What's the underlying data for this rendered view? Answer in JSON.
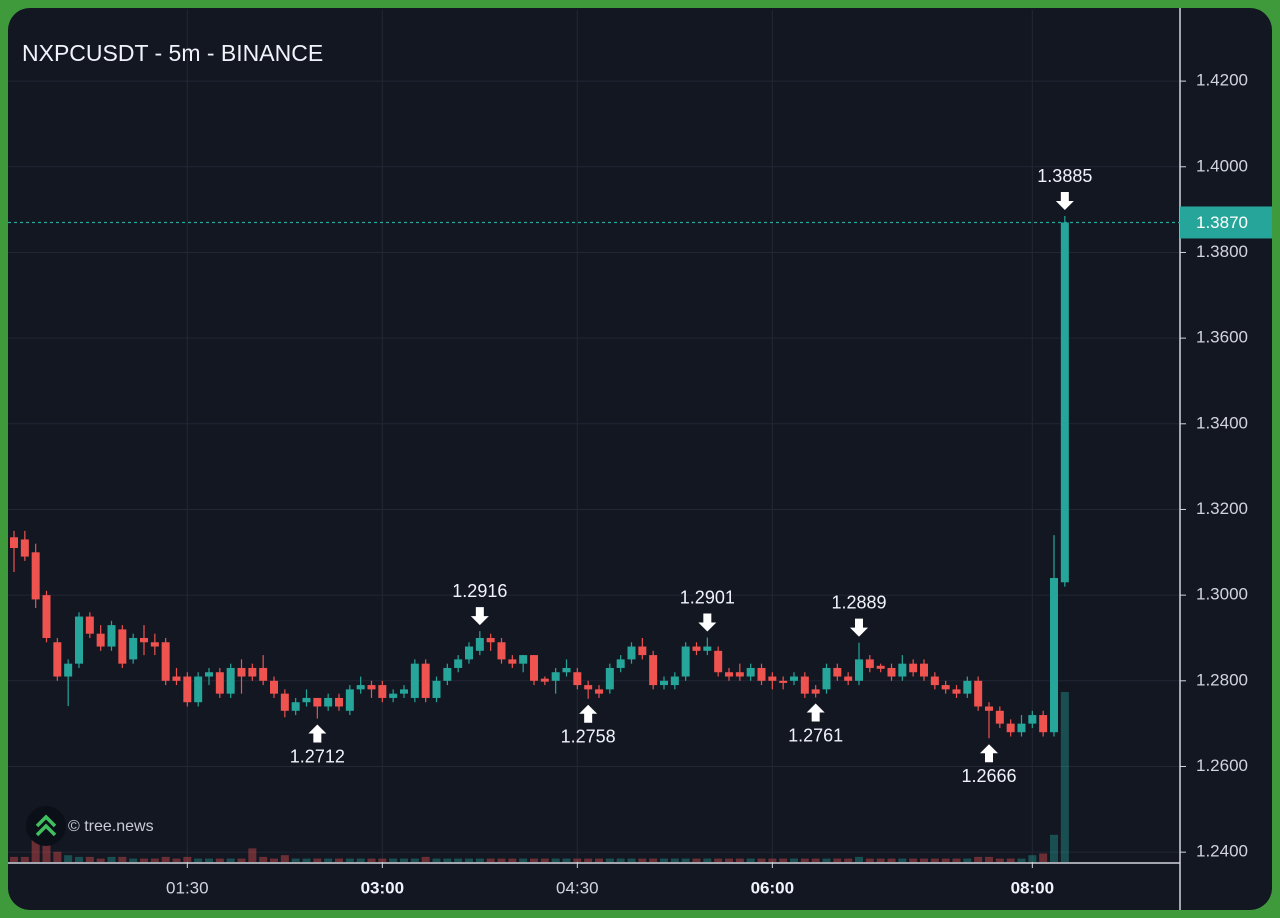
{
  "chart_data": {
    "type": "candlestick",
    "title": "NXPCUSDT - 5m - BINANCE",
    "watermark": "© tree.news",
    "x": [
      "00:10",
      "00:15",
      "00:20",
      "00:25",
      "00:30",
      "00:35",
      "00:40",
      "00:45",
      "00:50",
      "00:55",
      "01:00",
      "01:05",
      "01:10",
      "01:15",
      "01:20",
      "01:25",
      "01:30",
      "01:35",
      "01:40",
      "01:45",
      "01:50",
      "01:55",
      "02:00",
      "02:05",
      "02:10",
      "02:15",
      "02:20",
      "02:25",
      "02:30",
      "02:35",
      "02:40",
      "02:45",
      "02:50",
      "02:55",
      "03:00",
      "03:05",
      "03:10",
      "03:15",
      "03:20",
      "03:25",
      "03:30",
      "03:35",
      "03:40",
      "03:45",
      "03:50",
      "03:55",
      "04:00",
      "04:05",
      "04:10",
      "04:15",
      "04:20",
      "04:25",
      "04:30",
      "04:35",
      "04:40",
      "04:45",
      "04:50",
      "04:55",
      "05:00",
      "05:05",
      "05:10",
      "05:15",
      "05:20",
      "05:25",
      "05:30",
      "05:35",
      "05:40",
      "05:45",
      "05:50",
      "05:55",
      "06:00",
      "06:05",
      "06:10",
      "06:15",
      "06:20",
      "06:25",
      "06:30",
      "06:35",
      "06:40",
      "06:45",
      "06:50",
      "06:55",
      "07:00",
      "07:05",
      "07:10",
      "07:15",
      "07:20",
      "07:25",
      "07:30",
      "07:35",
      "07:40",
      "07:45",
      "07:50",
      "07:55",
      "08:00",
      "08:05",
      "08:10",
      "08:15"
    ],
    "open": [
      1.3135,
      1.313,
      1.31,
      1.3,
      1.289,
      1.281,
      1.284,
      1.295,
      1.291,
      1.288,
      1.292,
      1.285,
      1.29,
      1.289,
      1.289,
      1.281,
      1.281,
      1.275,
      1.281,
      1.282,
      1.277,
      1.283,
      1.283,
      1.283,
      1.28,
      1.277,
      1.273,
      1.275,
      1.276,
      1.274,
      1.276,
      1.273,
      1.278,
      1.279,
      1.279,
      1.276,
      1.277,
      1.276,
      1.284,
      1.276,
      1.28,
      1.283,
      1.285,
      1.287,
      1.29,
      1.289,
      1.285,
      1.284,
      1.286,
      1.2805,
      1.28,
      1.282,
      1.282,
      1.279,
      1.278,
      1.278,
      1.283,
      1.285,
      1.288,
      1.286,
      1.279,
      1.279,
      1.281,
      1.288,
      1.287,
      1.287,
      1.282,
      1.282,
      1.281,
      1.283,
      1.281,
      1.28,
      1.28,
      1.281,
      1.278,
      1.278,
      1.283,
      1.281,
      1.28,
      1.285,
      1.2835,
      1.283,
      1.281,
      1.284,
      1.284,
      1.281,
      1.279,
      1.278,
      1.277,
      1.28,
      1.274,
      1.273,
      1.27,
      1.268,
      1.27,
      1.272,
      1.268,
      1.303
    ],
    "high": [
      1.315,
      1.315,
      1.312,
      1.301,
      1.29,
      1.285,
      1.296,
      1.296,
      1.293,
      1.294,
      1.293,
      1.291,
      1.293,
      1.291,
      1.29,
      1.283,
      1.282,
      1.282,
      1.283,
      1.283,
      1.284,
      1.285,
      1.284,
      1.286,
      1.281,
      1.278,
      1.276,
      1.278,
      1.276,
      1.277,
      1.277,
      1.279,
      1.281,
      1.28,
      1.28,
      1.278,
      1.279,
      1.285,
      1.285,
      1.281,
      1.284,
      1.286,
      1.289,
      1.2916,
      1.291,
      1.29,
      1.286,
      1.286,
      1.286,
      1.281,
      1.283,
      1.285,
      1.283,
      1.28,
      1.279,
      1.284,
      1.286,
      1.289,
      1.29,
      1.287,
      1.281,
      1.282,
      1.289,
      1.289,
      1.2901,
      1.288,
      1.283,
      1.284,
      1.284,
      1.284,
      1.282,
      1.281,
      1.282,
      1.282,
      1.279,
      1.284,
      1.284,
      1.282,
      1.2889,
      1.286,
      1.284,
      1.284,
      1.286,
      1.285,
      1.285,
      1.282,
      1.28,
      1.279,
      1.281,
      1.281,
      1.275,
      1.274,
      1.271,
      1.272,
      1.273,
      1.273,
      1.314,
      1.3885
    ],
    "low": [
      1.3054,
      1.308,
      1.297,
      1.289,
      1.28,
      1.2741,
      1.283,
      1.29,
      1.287,
      1.287,
      1.283,
      1.284,
      1.286,
      1.286,
      1.279,
      1.279,
      1.274,
      1.274,
      1.279,
      1.276,
      1.276,
      1.277,
      1.28,
      1.279,
      1.276,
      1.2715,
      1.272,
      1.274,
      1.2712,
      1.273,
      1.273,
      1.272,
      1.277,
      1.276,
      1.275,
      1.275,
      1.276,
      1.275,
      1.275,
      1.275,
      1.279,
      1.282,
      1.284,
      1.286,
      1.287,
      1.284,
      1.283,
      1.282,
      1.279,
      1.279,
      1.277,
      1.281,
      1.278,
      1.2758,
      1.276,
      1.277,
      1.282,
      1.284,
      1.285,
      1.278,
      1.278,
      1.278,
      1.28,
      1.286,
      1.286,
      1.281,
      1.28,
      1.28,
      1.28,
      1.279,
      1.278,
      1.278,
      1.279,
      1.276,
      1.2761,
      1.277,
      1.28,
      1.279,
      1.279,
      1.282,
      1.282,
      1.28,
      1.28,
      1.281,
      1.28,
      1.278,
      1.277,
      1.276,
      1.276,
      1.273,
      1.2666,
      1.269,
      1.267,
      1.267,
      1.269,
      1.267,
      1.267,
      1.302
    ],
    "close": [
      1.311,
      1.309,
      1.299,
      1.29,
      1.281,
      1.284,
      1.295,
      1.291,
      1.288,
      1.293,
      1.284,
      1.29,
      1.289,
      1.288,
      1.28,
      1.28,
      1.275,
      1.281,
      1.282,
      1.277,
      1.283,
      1.281,
      1.281,
      1.28,
      1.277,
      1.273,
      1.275,
      1.276,
      1.274,
      1.276,
      1.274,
      1.278,
      1.279,
      1.278,
      1.276,
      1.277,
      1.278,
      1.284,
      1.276,
      1.28,
      1.283,
      1.285,
      1.288,
      1.29,
      1.289,
      1.285,
      1.284,
      1.286,
      1.28,
      1.2798,
      1.282,
      1.283,
      1.279,
      1.278,
      1.277,
      1.283,
      1.285,
      1.288,
      1.286,
      1.279,
      1.28,
      1.281,
      1.288,
      1.287,
      1.288,
      1.282,
      1.281,
      1.281,
      1.283,
      1.28,
      1.28,
      1.2795,
      1.281,
      1.277,
      1.277,
      1.283,
      1.281,
      1.28,
      1.285,
      1.283,
      1.2828,
      1.281,
      1.284,
      1.282,
      1.281,
      1.279,
      1.278,
      1.277,
      1.28,
      1.274,
      1.273,
      1.27,
      1.268,
      1.27,
      1.272,
      1.268,
      1.304,
      1.387
    ],
    "volume": [
      3,
      3,
      14,
      10,
      6,
      4,
      3,
      3,
      2,
      3,
      3,
      2,
      2,
      2,
      3,
      2,
      3,
      2,
      2,
      2,
      2,
      2,
      8,
      3,
      2,
      4,
      2,
      2,
      2,
      2,
      2,
      2,
      2,
      2,
      2,
      2,
      2,
      2,
      3,
      2,
      2,
      2,
      2,
      2,
      2,
      2,
      2,
      2,
      2,
      2,
      2,
      2,
      2,
      2,
      2,
      2,
      2,
      2,
      2,
      2,
      2,
      2,
      2,
      2,
      2,
      2,
      2,
      2,
      2,
      2,
      2,
      2,
      2,
      2,
      2,
      2,
      2,
      2,
      3,
      2,
      2,
      2,
      2,
      2,
      2,
      2,
      2,
      2,
      2,
      3,
      3,
      2,
      2,
      2,
      4,
      5,
      16,
      100
    ],
    "up_color": "#26a69a",
    "down_color": "#ef5350",
    "ylim": [
      1.2377,
      1.4366
    ],
    "yticks": [
      {
        "value": 1.24,
        "label": "1.2400"
      },
      {
        "value": 1.26,
        "label": "1.2600"
      },
      {
        "value": 1.28,
        "label": "1.2800"
      },
      {
        "value": 1.3,
        "label": "1.3000"
      },
      {
        "value": 1.32,
        "label": "1.3200"
      },
      {
        "value": 1.34,
        "label": "1.3400"
      },
      {
        "value": 1.36,
        "label": "1.3600"
      },
      {
        "value": 1.38,
        "label": "1.3800"
      },
      {
        "value": 1.4,
        "label": "1.4000"
      },
      {
        "value": 1.42,
        "label": "1.4200"
      }
    ],
    "xticks": [
      "01:30",
      "03:00",
      "04:30",
      "06:00",
      "08:00"
    ],
    "grid": true,
    "last_price": {
      "value": 1.387,
      "label": "1.3870"
    },
    "annotations": [
      {
        "x": "02:30",
        "value": 1.2712,
        "side": "below"
      },
      {
        "x": "03:45",
        "value": 1.2916,
        "side": "above"
      },
      {
        "x": "04:35",
        "value": 1.2758,
        "side": "below"
      },
      {
        "x": "05:30",
        "value": 1.2901,
        "side": "above"
      },
      {
        "x": "06:20",
        "value": 1.2761,
        "side": "below"
      },
      {
        "x": "06:40",
        "value": 1.2889,
        "side": "above"
      },
      {
        "x": "07:40",
        "value": 1.2666,
        "side": "below"
      },
      {
        "x": "08:15",
        "value": 1.3885,
        "side": "above"
      }
    ]
  }
}
